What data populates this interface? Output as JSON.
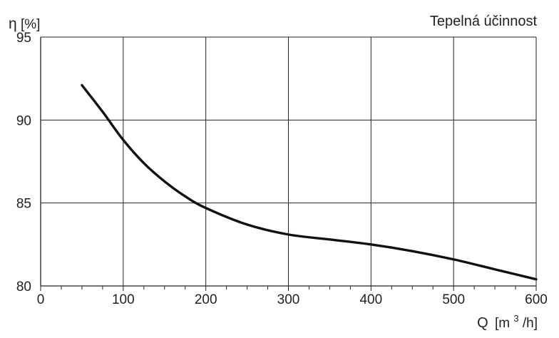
{
  "chart_data": {
    "type": "line",
    "title": "Tepelná účinnost",
    "ylabel_symbol": "η",
    "ylabel_unit": "[%]",
    "xlabel_symbol": "Q",
    "xlabel_unit_pre": "[m",
    "xlabel_unit_sup": "3",
    "xlabel_unit_post": "/h]",
    "xlim": [
      0,
      600
    ],
    "ylim": [
      80,
      95
    ],
    "x_ticks": [
      "0",
      "100",
      "200",
      "300",
      "400",
      "500",
      "600"
    ],
    "y_ticks": [
      "80",
      "85",
      "90",
      "95"
    ],
    "grid": true,
    "series": [
      {
        "x": [
          50,
          75,
          100,
          125,
          150,
          175,
          200,
          250,
          300,
          350,
          400,
          450,
          500,
          550,
          600
        ],
        "y": [
          92.1,
          90.5,
          88.8,
          87.4,
          86.3,
          85.4,
          84.7,
          83.7,
          83.1,
          82.8,
          82.5,
          82.1,
          81.6,
          81.0,
          80.4
        ]
      }
    ],
    "colors": {
      "line": "#111111",
      "grid": "#222222",
      "axes": "#222222"
    }
  }
}
